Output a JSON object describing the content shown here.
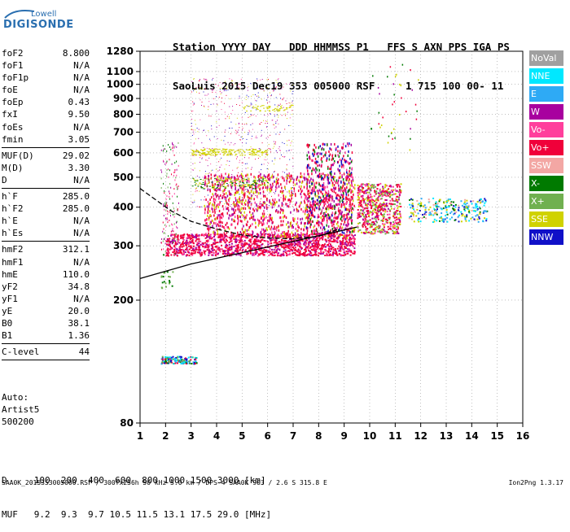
{
  "logo": {
    "line1": "Lowell",
    "line2": "DIGISONDE"
  },
  "header": {
    "line1": "Station YYYY DAY   DDD HHMMSS P1   FFS S AXN PPS IGA PS",
    "line2": "SaoLuis 2015 Dec19 353 005000 RSF     1 715 100 00- 11"
  },
  "params": [
    {
      "label": "foF2",
      "value": "8.800"
    },
    {
      "label": "foF1",
      "value": "N/A"
    },
    {
      "label": "foF1p",
      "value": "N/A"
    },
    {
      "label": "foE",
      "value": "N/A"
    },
    {
      "label": "foEp",
      "value": "0.43"
    },
    {
      "label": "fxI",
      "value": "9.50"
    },
    {
      "label": "foEs",
      "value": "N/A"
    },
    {
      "label": "fmin",
      "value": "3.05"
    },
    {
      "sep": true
    },
    {
      "label": "MUF(D)",
      "value": "29.02"
    },
    {
      "label": "M(D)",
      "value": "3.30"
    },
    {
      "label": "D",
      "value": "N/A"
    },
    {
      "sep": true
    },
    {
      "label": "h`F",
      "value": "285.0"
    },
    {
      "label": "h`F2",
      "value": "285.0"
    },
    {
      "label": "h`E",
      "value": "N/A"
    },
    {
      "label": "h`Es",
      "value": "N/A"
    },
    {
      "sep": true
    },
    {
      "label": "hmF2",
      "value": "312.1"
    },
    {
      "label": "hmF1",
      "value": "N/A"
    },
    {
      "label": "hmE",
      "value": "110.0"
    },
    {
      "label": "yF2",
      "value": "34.8"
    },
    {
      "label": "yF1",
      "value": "N/A"
    },
    {
      "label": "yE",
      "value": "20.0"
    },
    {
      "label": "B0",
      "value": "38.1"
    },
    {
      "label": "B1",
      "value": "1.36"
    },
    {
      "sep": true
    },
    {
      "label": "C-level",
      "value": "44"
    },
    {
      "sep": true
    }
  ],
  "auto": {
    "l1": "Auto:",
    "l2": "Artist5",
    "l3": "500200"
  },
  "muf_table": {
    "d_line": "D     100  200  400  600  800 1000 1500 3000 [km]",
    "muf_line": "MUF   9.2  9.3  9.7 10.5 11.5 13.1 17.5 29.0 [MHz]"
  },
  "footer": "SAA0K_2015353005000.RSF / 300fx256h 50 kHz 5.0 km / DPS-4 SAA0K 903 / 2.6 S 315.8 E",
  "version": "Ion2Png 1.3.17",
  "legend": [
    {
      "label": "NoVal",
      "color": "#a0a0a0"
    },
    {
      "label": "NNE",
      "color": "#00e8ff"
    },
    {
      "label": "E",
      "color": "#2eaaf5"
    },
    {
      "label": "W",
      "color": "#a8009f"
    },
    {
      "label": "Vo-",
      "color": "#ff3f9c"
    },
    {
      "label": "Vo+",
      "color": "#f0003a"
    },
    {
      "label": "SSW",
      "color": "#f3a7a4"
    },
    {
      "label": "X-",
      "color": "#007a00"
    },
    {
      "label": "X+",
      "color": "#70b050"
    },
    {
      "label": "SSE",
      "color": "#d0d200"
    },
    {
      "label": "NNW",
      "color": "#1010c8"
    }
  ],
  "chart_data": {
    "type": "scatter",
    "xlim": [
      1,
      16
    ],
    "ylim": [
      80,
      1280
    ],
    "yscale": "log",
    "x_ticks": [
      1,
      2,
      3,
      4,
      5,
      6,
      7,
      8,
      9,
      10,
      11,
      12,
      13,
      14,
      15,
      16
    ],
    "y_ticks": [
      80,
      200,
      300,
      400,
      500,
      600,
      700,
      800,
      900,
      1000,
      1100,
      1280
    ],
    "grid": "dotted",
    "series": [
      {
        "name": "Vo+",
        "values": "main F-layer trace 2-9.5 MHz, 280-500 km"
      },
      {
        "name": "SSE",
        "values": "spread echoes 3-7 MHz, 400-900 km"
      }
    ],
    "traces": [
      {
        "color": "#000",
        "style": "solid",
        "points": [
          [
            1,
            235
          ],
          [
            3,
            262
          ],
          [
            5,
            285
          ],
          [
            7,
            310
          ],
          [
            8.5,
            330
          ],
          [
            9.5,
            345
          ]
        ]
      },
      {
        "color": "#000",
        "style": "dashed",
        "points": [
          [
            1,
            460
          ],
          [
            2.2,
            390
          ],
          [
            3,
            360
          ],
          [
            4,
            340
          ],
          [
            5,
            325
          ],
          [
            6,
            318
          ],
          [
            7,
            316
          ],
          [
            8,
            322
          ],
          [
            8.8,
            340
          ]
        ]
      }
    ]
  }
}
